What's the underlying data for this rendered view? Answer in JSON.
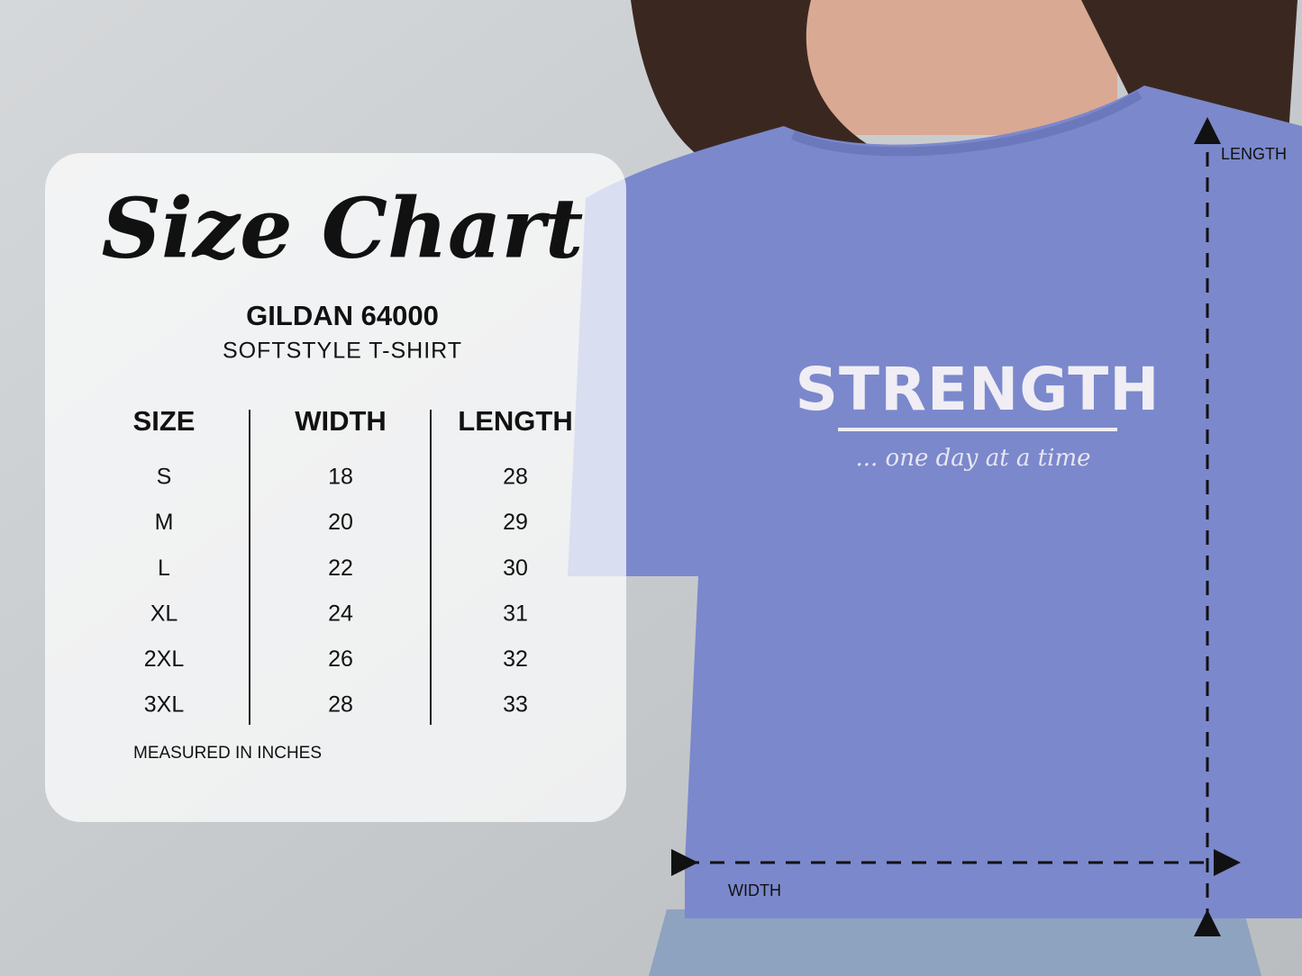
{
  "panel": {
    "title": "Size Chart",
    "brand": "GILDAN 64000",
    "product": "SOFTSTYLE T-SHIRT",
    "table": {
      "headers": [
        "SIZE",
        "WIDTH",
        "LENGTH"
      ],
      "rows": [
        [
          "S",
          18,
          28
        ],
        [
          "M",
          20,
          29
        ],
        [
          "L",
          22,
          30
        ],
        [
          "XL",
          24,
          31
        ],
        [
          "2XL",
          26,
          32
        ],
        [
          "3XL",
          28,
          33
        ]
      ]
    },
    "note": "MEASURED IN INCHES"
  },
  "shirt": {
    "print_title": "STRENGTH",
    "print_subtitle": "... one day at a time",
    "length_label": "LENGTH",
    "width_label": "WIDTH"
  }
}
